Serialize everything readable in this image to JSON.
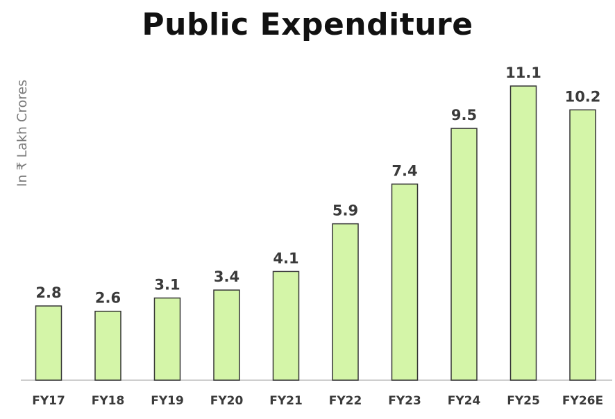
{
  "chart_data": {
    "type": "bar",
    "title": "Public Expenditure",
    "ylabel": "In ₹ Lakh Crores",
    "xlabel": "",
    "categories": [
      "FY17",
      "FY18",
      "FY19",
      "FY20",
      "FY21",
      "FY22",
      "FY23",
      "FY24",
      "FY25",
      "FY26E"
    ],
    "values": [
      2.8,
      2.6,
      3.1,
      3.4,
      4.1,
      5.9,
      7.4,
      9.5,
      11.1,
      10.2
    ],
    "value_labels": [
      "2.8",
      "2.6",
      "3.1",
      "3.4",
      "4.1",
      "5.9",
      "7.4",
      "9.5",
      "11.1",
      "10.2"
    ],
    "ylim": [
      0,
      11.1
    ],
    "grid": false,
    "legend": "none",
    "colors": {
      "bar_fill": "#d4f5a8",
      "bar_stroke": "#333333",
      "axis": "#bdbdbd"
    }
  }
}
